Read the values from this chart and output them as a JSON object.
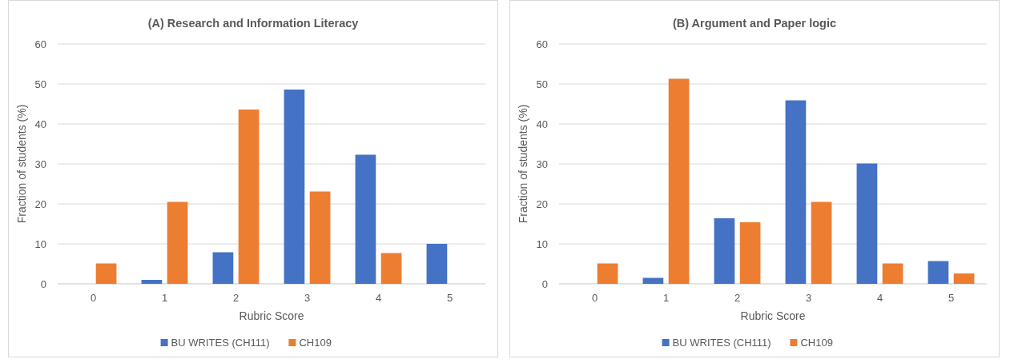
{
  "chart_data": [
    {
      "type": "bar",
      "title": "(A) Research and Information Literacy",
      "xlabel": "Rubric Score",
      "ylabel": "Fraction of students (%)",
      "categories": [
        "0",
        "1",
        "2",
        "3",
        "4",
        "5"
      ],
      "series": [
        {
          "name": "BU WRITES (CH111)",
          "color": "#4472c4",
          "values": [
            0,
            1,
            7.9,
            48.6,
            32.3,
            10
          ]
        },
        {
          "name": "CH109",
          "color": "#ed7d31",
          "values": [
            5.1,
            20.5,
            43.6,
            23.1,
            7.7,
            0
          ]
        }
      ],
      "ylim": [
        0,
        60
      ],
      "yticks": [
        0,
        10,
        20,
        30,
        40,
        50,
        60
      ],
      "grid": "y",
      "legend": "bottom"
    },
    {
      "type": "bar",
      "title": "(B) Argument and Paper logic",
      "xlabel": "Rubric Score",
      "ylabel": "Fraction of students (%)",
      "categories": [
        "0",
        "1",
        "2",
        "3",
        "4",
        "5"
      ],
      "series": [
        {
          "name": "BU WRITES (CH111)",
          "color": "#4472c4",
          "values": [
            0,
            1.5,
            16.4,
            45.9,
            30.1,
            5.7
          ]
        },
        {
          "name": "CH109",
          "color": "#ed7d31",
          "values": [
            5.1,
            51.3,
            15.4,
            20.5,
            5.1,
            2.6
          ]
        }
      ],
      "ylim": [
        0,
        60
      ],
      "yticks": [
        0,
        10,
        20,
        30,
        40,
        50,
        60
      ],
      "grid": "y",
      "legend": "bottom"
    }
  ]
}
